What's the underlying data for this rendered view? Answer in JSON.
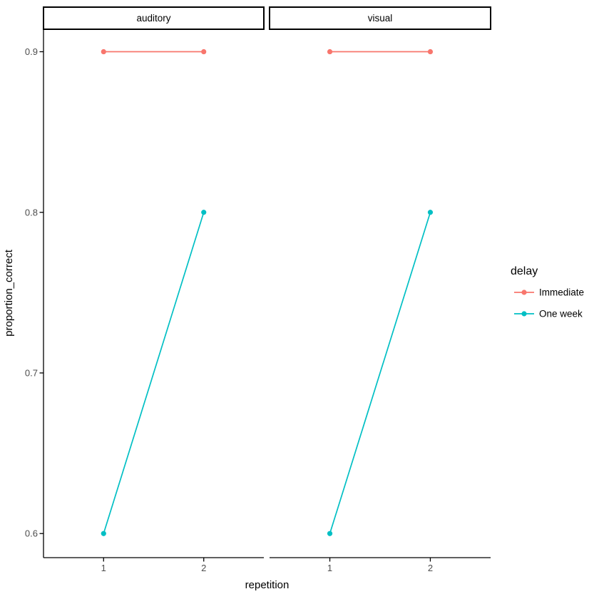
{
  "chart_data": {
    "type": "line",
    "title": "",
    "xlabel": "repetition",
    "ylabel": "proportion_correct",
    "xlim": [
      0.4,
      2.6
    ],
    "ylim": [
      0.585,
      0.914
    ],
    "grid": false,
    "xticks": [
      {
        "value": 1,
        "label": "1"
      },
      {
        "value": 2,
        "label": "2"
      }
    ],
    "yticks": [
      {
        "value": 0.6,
        "label": "0.6"
      },
      {
        "value": 0.7,
        "label": "0.7"
      },
      {
        "value": 0.8,
        "label": "0.8"
      },
      {
        "value": 0.9,
        "label": "0.9"
      }
    ],
    "facets": [
      {
        "label": "auditory",
        "series": [
          {
            "name": "Immediate",
            "x": [
              1,
              2
            ],
            "y": [
              0.9,
              0.9
            ]
          },
          {
            "name": "One week",
            "x": [
              1,
              2
            ],
            "y": [
              0.6,
              0.8
            ]
          }
        ]
      },
      {
        "label": "visual",
        "series": [
          {
            "name": "Immediate",
            "x": [
              1,
              2
            ],
            "y": [
              0.9,
              0.9
            ]
          },
          {
            "name": "One week",
            "x": [
              1,
              2
            ],
            "y": [
              0.6,
              0.8
            ]
          }
        ]
      }
    ],
    "legend": {
      "title": "delay",
      "position": "right",
      "entries": [
        {
          "label": "Immediate",
          "color": "#F8766D"
        },
        {
          "label": "One week",
          "color": "#00BFC4"
        }
      ]
    },
    "colors": {
      "axis": "#000000",
      "tick_label": "#4D4D4D",
      "strip_border": "#000000",
      "strip_fill": "#FFFFFF",
      "background": "#FFFFFF"
    }
  }
}
